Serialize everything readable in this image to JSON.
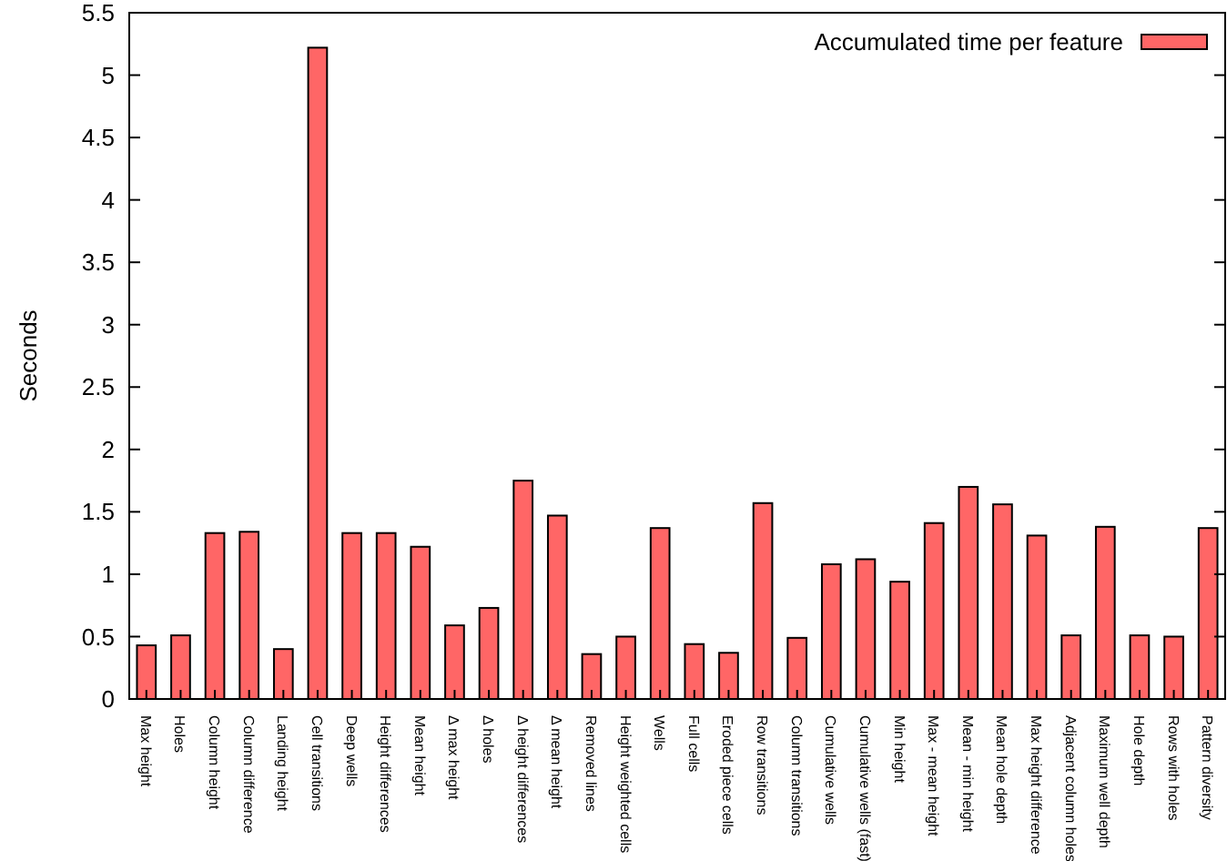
{
  "chart_data": {
    "type": "bar",
    "ylabel": "Seconds",
    "categories": [
      "Max height",
      "Holes",
      "Column height",
      "Column difference",
      "Landing height",
      "Cell transitions",
      "Deep wells",
      "Height differences",
      "Mean height",
      "Δ max height",
      "Δ holes",
      "Δ height differences",
      "Δ mean height",
      "Removed lines",
      "Height weighted cells",
      "Wells",
      "Full cells",
      "Eroded piece cells",
      "Row transitions",
      "Column transitions",
      "Cumulative wells",
      "Cumulative wells (fast)",
      "Min height",
      "Max - mean height",
      "Mean - min height",
      "Mean hole depth",
      "Max height difference",
      "Adjacent column holes",
      "Maximum well depth",
      "Hole depth",
      "Rows with holes",
      "Pattern diversity"
    ],
    "series": [
      {
        "name": "Accumulated time per feature",
        "color": "#ff6666",
        "values": [
          0.43,
          0.51,
          1.33,
          1.34,
          0.4,
          5.22,
          1.33,
          1.33,
          1.22,
          0.59,
          0.73,
          1.75,
          1.47,
          0.36,
          0.5,
          1.37,
          0.44,
          0.37,
          1.57,
          0.49,
          1.08,
          1.12,
          0.94,
          1.41,
          1.7,
          1.56,
          1.31,
          0.51,
          1.38,
          0.51,
          0.5,
          1.37
        ]
      }
    ],
    "ylim": [
      0,
      5.5
    ],
    "yticks": [
      0,
      0.5,
      1,
      1.5,
      2,
      2.5,
      3,
      3.5,
      4,
      4.5,
      5,
      5.5
    ],
    "grid": false,
    "legend": "top right"
  }
}
